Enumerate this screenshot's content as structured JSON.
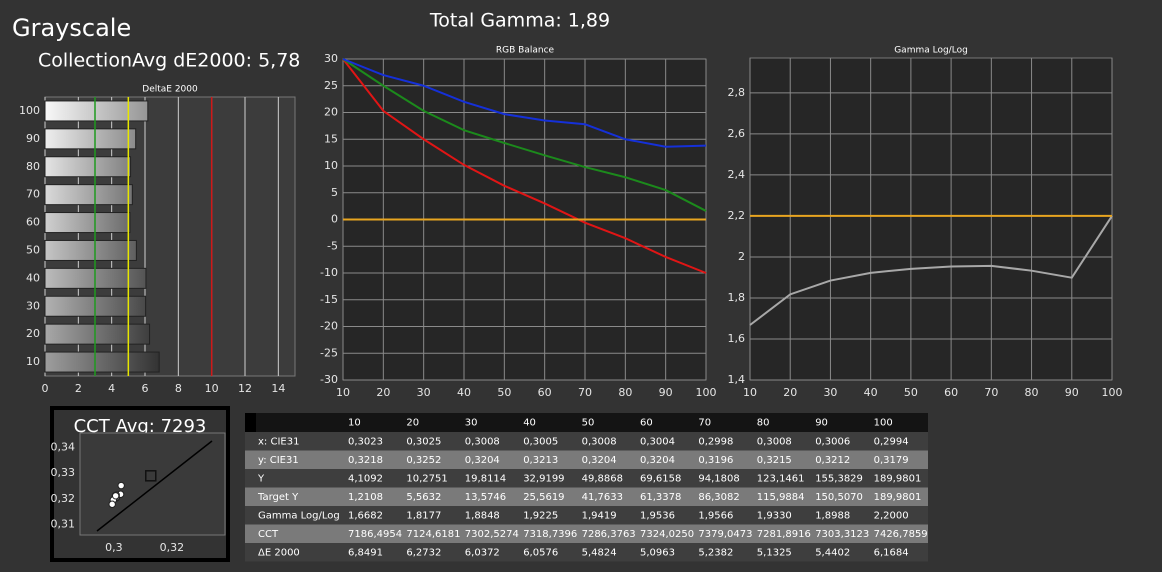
{
  "header": {
    "title": "Grayscale",
    "collection_avg": "CollectionAvg dE2000: 5,78",
    "total_gamma": "Total Gamma: 1,89"
  },
  "chart_data": [
    {
      "type": "bar",
      "orientation": "horizontal",
      "title": "DeltaE 2000",
      "categories": [
        "100",
        "90",
        "80",
        "70",
        "60",
        "50",
        "40",
        "30",
        "20",
        "10"
      ],
      "values": [
        6.1684,
        5.4402,
        5.1325,
        5.2382,
        5.0963,
        5.4824,
        6.0576,
        6.0372,
        6.2732,
        6.8491
      ],
      "xlim": [
        0,
        15
      ],
      "xticks": [
        0,
        2,
        4,
        6,
        8,
        10,
        12,
        14
      ],
      "grid": true,
      "reference_lines": [
        {
          "value": 3,
          "color": "#1f9a1f"
        },
        {
          "value": 5,
          "color": "#e6e600"
        },
        {
          "value": 10,
          "color": "#d01818"
        }
      ]
    },
    {
      "type": "line",
      "title": "RGB Balance",
      "x": [
        10,
        20,
        30,
        40,
        50,
        60,
        70,
        80,
        90,
        100
      ],
      "series": [
        {
          "color": "#e01515",
          "values": [
            30,
            20.3,
            15,
            10.2,
            6.3,
            3,
            -0.6,
            -3.5,
            -7,
            -10
          ]
        },
        {
          "color": "#1c8a1c",
          "values": [
            30,
            25,
            20.3,
            16.7,
            14.3,
            12,
            9.8,
            7.9,
            5.5,
            1.6
          ]
        },
        {
          "color": "#1530d8",
          "values": [
            30,
            27,
            25,
            22,
            19.7,
            18.5,
            17.8,
            15,
            13.6,
            13.8
          ]
        },
        {
          "color": "#e8a520",
          "values": [
            0,
            0,
            0,
            0,
            0,
            0,
            0,
            0,
            0,
            0
          ]
        }
      ],
      "xlim": [
        10,
        100
      ],
      "xticks": [
        10,
        20,
        30,
        40,
        50,
        60,
        70,
        80,
        90,
        100
      ],
      "ylim": [
        -30,
        30
      ],
      "yticks": [
        -30,
        -25,
        -20,
        -15,
        -10,
        -5,
        0,
        5,
        10,
        15,
        20,
        25,
        30
      ],
      "grid": true
    },
    {
      "type": "line",
      "title": "Gamma Log/Log",
      "x": [
        10,
        20,
        30,
        40,
        50,
        60,
        70,
        80,
        90,
        100
      ],
      "series": [
        {
          "color": "#a8a8a8",
          "values": [
            1.6682,
            1.8177,
            1.8848,
            1.9225,
            1.9419,
            1.9536,
            1.9566,
            1.933,
            1.8988,
            2.2
          ]
        },
        {
          "color": "#e8a520",
          "values": [
            2.2,
            2.2,
            2.2,
            2.2,
            2.2,
            2.2,
            2.2,
            2.2,
            2.2,
            2.2
          ]
        }
      ],
      "xlim": [
        10,
        100
      ],
      "xticks": [
        10,
        20,
        30,
        40,
        50,
        60,
        70,
        80,
        90,
        100
      ],
      "ylim": [
        1.4,
        2.97
      ],
      "yticks": [
        {
          "value": 1.4,
          "label": "1,4"
        },
        {
          "value": 1.6,
          "label": "1,6"
        },
        {
          "value": 1.8,
          "label": "1,8"
        },
        2,
        {
          "value": 2.2,
          "label": "2,2"
        },
        {
          "value": 2.4,
          "label": "2,4"
        },
        {
          "value": 2.6,
          "label": "2,6"
        },
        {
          "value": 2.8,
          "label": "2,8"
        }
      ],
      "grid": true
    },
    {
      "type": "scatter",
      "title": "CCT Avg: 7293",
      "series": [
        {
          "color": "#ffffff",
          "x": [
            0.3023,
            0.3025,
            0.3008,
            0.3005,
            0.3008,
            0.3004,
            0.2998,
            0.3008,
            0.3006,
            0.2994
          ],
          "values": [
            0.3218,
            0.3252,
            0.3204,
            0.3213,
            0.3204,
            0.3204,
            0.3196,
            0.3215,
            0.3212,
            0.3179
          ]
        },
        {
          "color": "#111111",
          "marker": "square",
          "x": [
            0.3127
          ],
          "values": [
            0.329
          ]
        }
      ],
      "xlim": [
        0.2883,
        0.3383
      ],
      "xticks": [
        {
          "value": 0.3,
          "label": "0,3"
        },
        {
          "value": 0.32,
          "label": "0,32"
        }
      ],
      "ylim": [
        0.3059,
        0.3457
      ],
      "yticks": [
        {
          "value": 0.31,
          "label": "0,31"
        },
        {
          "value": 0.32,
          "label": "0,32"
        },
        {
          "value": 0.33,
          "label": "0,33"
        },
        {
          "value": 0.34,
          "label": "0,34"
        }
      ],
      "grid": false
    }
  ],
  "table": {
    "columns": [
      "10",
      "20",
      "30",
      "40",
      "50",
      "60",
      "70",
      "80",
      "90",
      "100"
    ],
    "rows": [
      [
        "x: CIE31",
        "0,3023",
        "0,3025",
        "0,3008",
        "0,3005",
        "0,3008",
        "0,3004",
        "0,2998",
        "0,3008",
        "0,3006",
        "0,2994"
      ],
      [
        "y: CIE31",
        "0,3218",
        "0,3252",
        "0,3204",
        "0,3213",
        "0,3204",
        "0,3204",
        "0,3196",
        "0,3215",
        "0,3212",
        "0,3179"
      ],
      [
        "Y",
        "4,1092",
        "10,2751",
        "19,8114",
        "32,9199",
        "49,8868",
        "69,6158",
        "94,1808",
        "123,1461",
        "155,3829",
        "189,9801"
      ],
      [
        "Target Y",
        "1,2108",
        "5,5632",
        "13,5746",
        "25,5619",
        "41,7633",
        "61,3378",
        "86,3082",
        "115,9884",
        "150,5070",
        "189,9801"
      ],
      [
        "Gamma Log/Log",
        "1,6682",
        "1,8177",
        "1,8848",
        "1,9225",
        "1,9419",
        "1,9536",
        "1,9566",
        "1,9330",
        "1,8988",
        "2,2000"
      ],
      [
        "CCT",
        "7186,4954",
        "7124,6181",
        "7302,5274",
        "7318,7396",
        "7286,3763",
        "7324,0250",
        "7379,0473",
        "7281,8916",
        "7303,3123",
        "7426,7859"
      ],
      [
        "ΔE 2000",
        "6,8491",
        "6,2732",
        "6,0372",
        "6,0576",
        "5,4824",
        "5,0963",
        "5,2382",
        "5,1325",
        "5,4402",
        "6,1684"
      ]
    ]
  }
}
